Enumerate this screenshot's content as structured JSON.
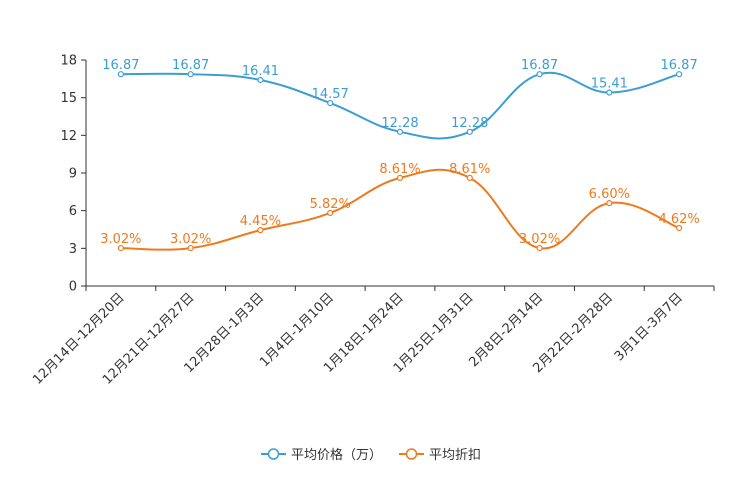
{
  "chart_data": {
    "type": "line",
    "title": "",
    "xlabel": "",
    "ylabel": "",
    "ylim": [
      0,
      18
    ],
    "yticks": [
      0,
      3,
      6,
      9,
      12,
      15,
      18
    ],
    "grid": false,
    "legend_position": "bottom-center",
    "categories": [
      "12月14日-12月20日",
      "12月21日-12月27日",
      "12月28日-1月3日",
      "1月4日-1月10日",
      "1月18日-1月24日",
      "1月25日-1月31日",
      "2月8日-2月14日",
      "2月22日-2月28日",
      "3月1日-3月7日"
    ],
    "series": [
      {
        "name": "平均价格（万）",
        "color": "#3b9ed3",
        "values": [
          16.87,
          16.87,
          16.41,
          14.57,
          12.28,
          12.28,
          16.87,
          15.41,
          16.87
        ],
        "labels": [
          "16.87",
          "16.87",
          "16.41",
          "14.57",
          "12.28",
          "12.28",
          "16.87",
          "15.41",
          "16.87"
        ]
      },
      {
        "name": "平均折扣",
        "color": "#ee7a1e",
        "values": [
          3.02,
          3.02,
          4.45,
          5.82,
          8.61,
          8.61,
          3.02,
          6.6,
          4.62
        ],
        "labels": [
          "3.02%",
          "3.02%",
          "4.45%",
          "5.82%",
          "8.61%",
          "8.61%",
          "3.02%",
          "6.60%",
          "4.62%"
        ]
      }
    ]
  }
}
